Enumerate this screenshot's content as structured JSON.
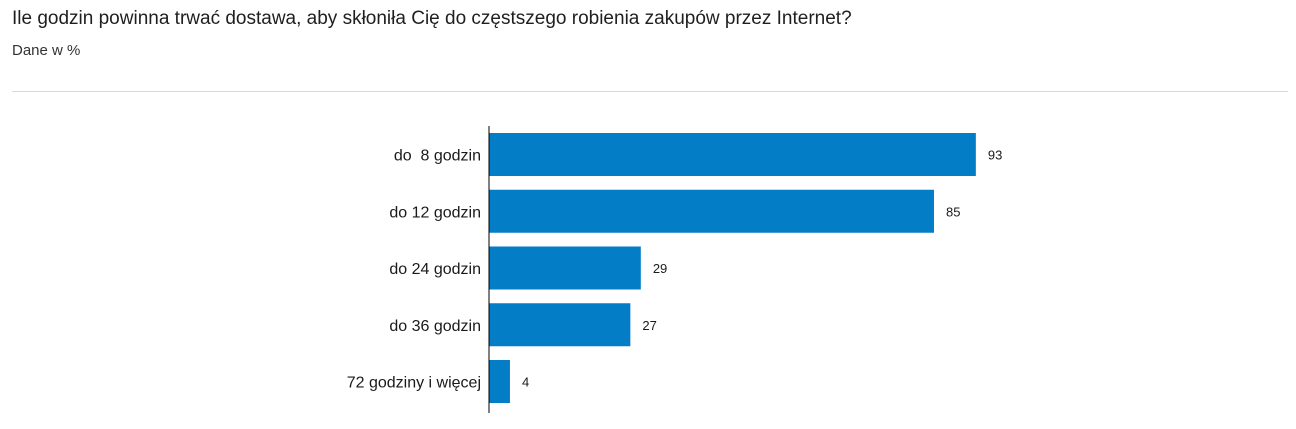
{
  "header": {
    "title": "Ile godzin powinna trwać dostawa, aby skłoniła Cię do częstszego robienia zakupów przez Internet?",
    "subtitle": "Dane w %"
  },
  "chart_data": {
    "type": "bar",
    "orientation": "horizontal",
    "title": "Ile godzin powinna trwać dostawa, aby skłoniła Cię do częstszego robienia zakupów przez Internet?",
    "subtitle": "Dane w %",
    "categories": [
      "do  8 godzin",
      "do 12 godzin",
      "do 24 godzin",
      "do 36 godzin",
      "72 godziny i więcej"
    ],
    "values": [
      93,
      85,
      29,
      27,
      4
    ],
    "xlim": [
      0,
      100
    ],
    "grid": false,
    "legend": "none",
    "colors": {
      "bar": "#037dc6",
      "axis": "#000000",
      "divider": "#d9d9d9"
    }
  }
}
